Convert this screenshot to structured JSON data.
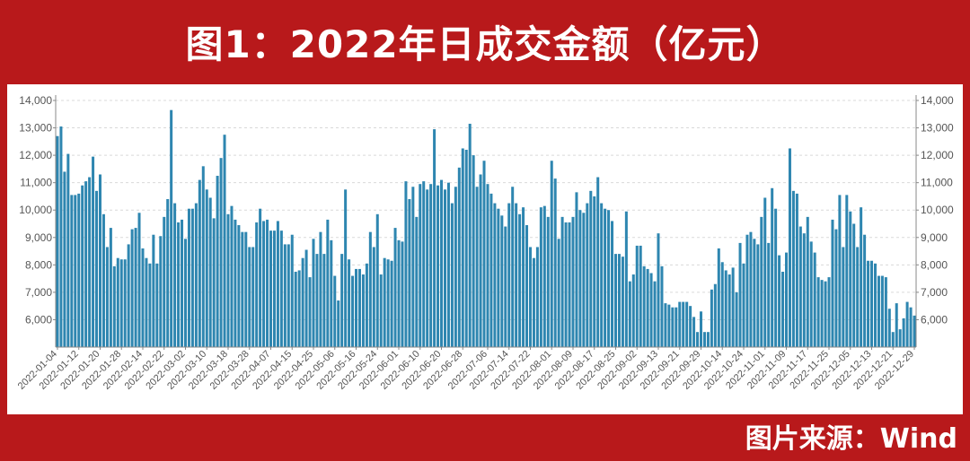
{
  "header": {
    "title": "图1：2022年日成交金额（亿元）"
  },
  "footer": {
    "source": "图片来源：Wind"
  },
  "colors": {
    "background": "#b8191b",
    "bar": "#2e86b0",
    "grid": "#d9d9d9",
    "panel": "#ffffff"
  },
  "chart_data": {
    "type": "bar",
    "title": "",
    "xlabel": "",
    "ylabel": "",
    "ylim": [
      5000,
      14000
    ],
    "yticks": [
      6000,
      7000,
      8000,
      9000,
      10000,
      11000,
      12000,
      13000,
      14000
    ],
    "ytick_labels": [
      "6,000",
      "7,000",
      "8,000",
      "9,000",
      "10,000",
      "11,000",
      "12,000",
      "13,000",
      "14,000"
    ],
    "grid": true,
    "legend": "none",
    "secondary_axis": "right",
    "xtick_labels": [
      "2022-01-04",
      "2022-01-12",
      "2022-01-20",
      "2022-01-28",
      "2022-02-14",
      "2022-02-22",
      "2022-03-02",
      "2022-03-10",
      "2022-03-18",
      "2022-03-28",
      "2022-04-07",
      "2022-04-15",
      "2022-04-25",
      "2022-05-06",
      "2022-05-16",
      "2022-05-24",
      "2022-06-01",
      "2022-06-10",
      "2022-06-20",
      "2022-06-28",
      "2022-07-06",
      "2022-07-14",
      "2022-07-22",
      "2022-08-01",
      "2022-08-09",
      "2022-08-17",
      "2022-08-25",
      "2022-09-02",
      "2022-09-13",
      "2022-09-21",
      "2022-09-29",
      "2022-10-14",
      "2022-10-24",
      "2022-11-01",
      "2022-11-09",
      "2022-11-17",
      "2022-11-25",
      "2022-12-05",
      "2022-12-13",
      "2022-12-21",
      "2022-12-29"
    ],
    "values": [
      12700,
      13050,
      11400,
      12050,
      10550,
      10550,
      10600,
      10900,
      11050,
      11200,
      11950,
      10700,
      11300,
      9850,
      8650,
      9350,
      7950,
      8250,
      8200,
      8200,
      8750,
      9300,
      9350,
      9900,
      8600,
      8250,
      8050,
      9100,
      8050,
      9050,
      9750,
      10400,
      13650,
      10250,
      9550,
      9650,
      8950,
      10050,
      10050,
      10250,
      11100,
      11600,
      10750,
      10450,
      9700,
      11250,
      11900,
      12750,
      9850,
      10150,
      9650,
      9450,
      9200,
      9200,
      8650,
      8650,
      9550,
      10050,
      9600,
      9650,
      9250,
      9250,
      9600,
      9250,
      8750,
      8750,
      9100,
      7750,
      7800,
      8250,
      8550,
      7550,
      8950,
      8400,
      9200,
      8400,
      9650,
      8900,
      7600,
      6700,
      8400,
      10750,
      8200,
      7600,
      7850,
      7850,
      7650,
      8050,
      9200,
      8650,
      9850,
      7650,
      8250,
      8200,
      8150,
      9350,
      8900,
      8850,
      11050,
      10400,
      10850,
      9750,
      10950,
      11050,
      10750,
      10950,
      12950,
      10900,
      11100,
      10750,
      11000,
      10250,
      10850,
      11550,
      12250,
      12200,
      13150,
      12000,
      10850,
      11300,
      11800,
      10950,
      10600,
      10250,
      10050,
      9800,
      9400,
      10250,
      10850,
      10250,
      9850,
      10100,
      9450,
      8650,
      8250,
      8650,
      10100,
      10150,
      9750,
      11800,
      11150,
      8950,
      9750,
      9550,
      9550,
      9750,
      10650,
      10000,
      9900,
      10250,
      10700,
      10500,
      11200,
      10250,
      10050,
      10000,
      9600,
      8400,
      8400,
      8300,
      9950,
      7400,
      7650,
      8700,
      8700,
      7950,
      7850,
      7700,
      7400,
      9150,
      7950,
      6600,
      6550,
      6450,
      6450,
      6650,
      6650,
      6650,
      6500,
      6100,
      5550,
      6300,
      5550,
      5550,
      7100,
      7300,
      8600,
      8100,
      7800,
      7650,
      7900,
      7000,
      8800,
      8050,
      9100,
      9200,
      8950,
      8750,
      9750,
      10450,
      8800,
      10800,
      10050,
      8350,
      7750,
      8450,
      12250,
      10700,
      10600,
      9400,
      9150,
      9750,
      8850,
      8450,
      7550,
      7450,
      7400,
      7550,
      9650,
      9300,
      10550,
      8650,
      10550,
      9950,
      9500,
      8650,
      10100,
      9100,
      8150,
      8150,
      8050,
      7600,
      7600,
      7550,
      6400,
      5550,
      6600,
      5650,
      6050,
      6650,
      6450,
      6150
    ]
  }
}
